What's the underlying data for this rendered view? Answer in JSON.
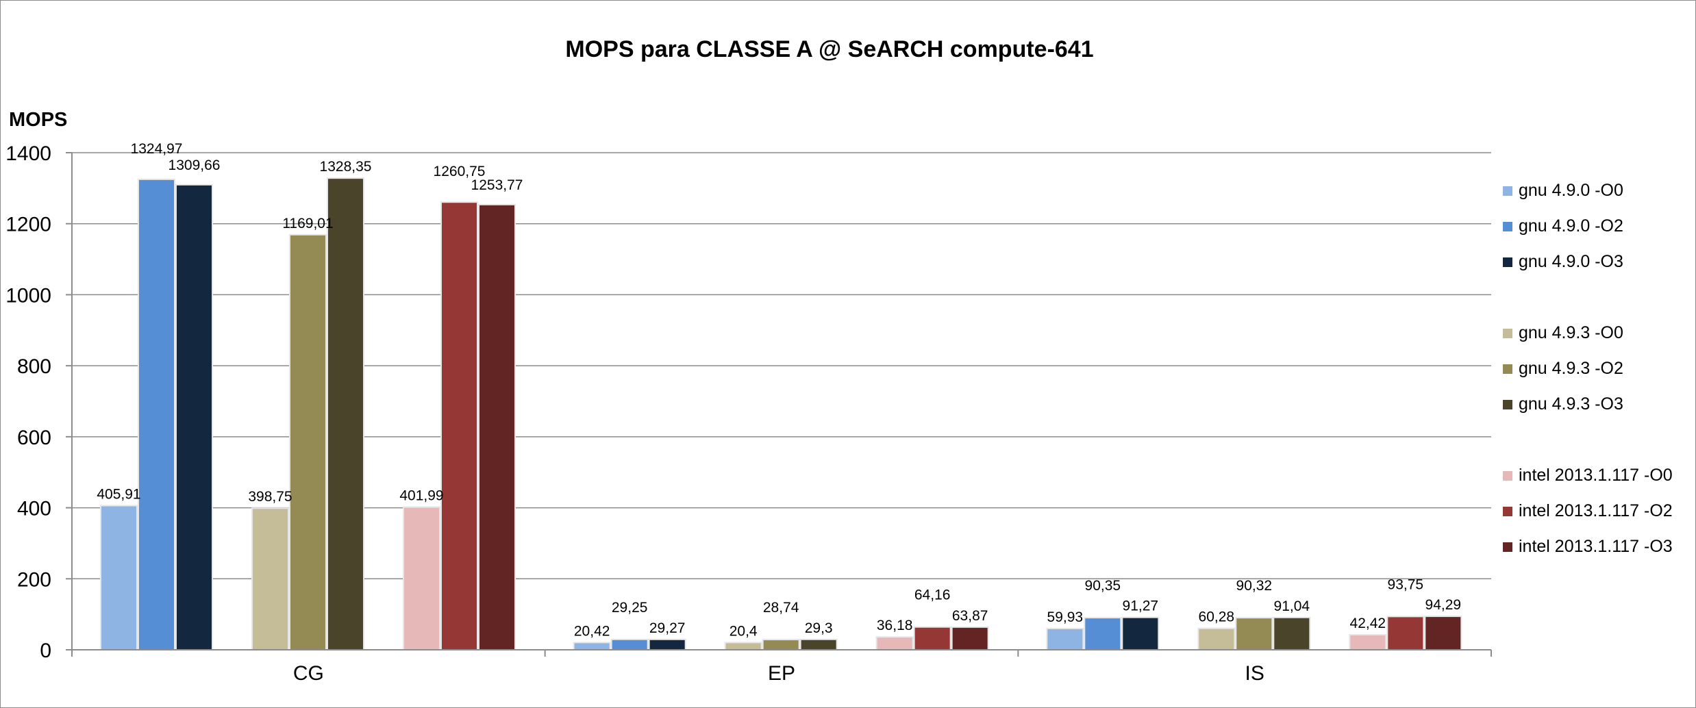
{
  "chart_data": {
    "type": "bar",
    "title": "MOPS para CLASSE A @ SeARCH compute-641",
    "ylabel": "MOPS",
    "xlabel": "",
    "ylim": [
      0,
      1400
    ],
    "yticks": [
      0,
      200,
      400,
      600,
      800,
      1000,
      1200,
      1400
    ],
    "grid": true,
    "legend_position": "right",
    "categories": [
      "CG",
      "EP",
      "IS"
    ],
    "groups": [
      {
        "name": "gnu 4.9.0",
        "series": [
          {
            "name": "gnu 4.9.0 -O0",
            "color": "#8DB4E2",
            "values": [
              405.91,
              20.42,
              59.93
            ],
            "labels": [
              "405,91",
              "20,42",
              "59,93"
            ]
          },
          {
            "name": "gnu 4.9.0 -O2",
            "color": "#558ED5",
            "values": [
              1324.97,
              29.25,
              90.35
            ],
            "labels": [
              "1324,97",
              "29,25",
              "90,35"
            ]
          },
          {
            "name": "gnu 4.9.0 -O3",
            "color": "#13273F",
            "values": [
              1309.66,
              29.27,
              91.27
            ],
            "labels": [
              "1309,66",
              "29,27",
              "91,27"
            ]
          }
        ]
      },
      {
        "name": "gnu 4.9.3",
        "series": [
          {
            "name": "gnu 4.9.3 -O0",
            "color": "#C4BD97",
            "values": [
              398.75,
              20.4,
              60.28
            ],
            "labels": [
              "398,75",
              "20,4",
              "60,28"
            ]
          },
          {
            "name": "gnu 4.9.3 -O2",
            "color": "#948A54",
            "values": [
              1169.01,
              28.74,
              90.32
            ],
            "labels": [
              "1169,01",
              "28,74",
              "90,32"
            ]
          },
          {
            "name": "gnu 4.9.3 -O3",
            "color": "#4A452A",
            "values": [
              1328.35,
              29.3,
              91.04
            ],
            "labels": [
              "1328,35",
              "29,3",
              "91,04"
            ]
          }
        ]
      },
      {
        "name": "intel 2013.1.117",
        "series": [
          {
            "name": "intel 2013.1.117 -O0",
            "color": "#E6B9B8",
            "values": [
              401.99,
              36.18,
              42.42
            ],
            "labels": [
              "401,99",
              "36,18",
              "42,42"
            ]
          },
          {
            "name": "intel 2013.1.117 -O2",
            "color": "#953735",
            "values": [
              1260.75,
              64.16,
              93.75
            ],
            "labels": [
              "1260,75",
              "64,16",
              "93,75"
            ]
          },
          {
            "name": "intel 2013.1.117 -O3",
            "color": "#632523",
            "values": [
              1253.77,
              63.87,
              94.29
            ],
            "labels": [
              "1253,77",
              "63,87",
              "94,29"
            ]
          }
        ]
      }
    ]
  }
}
